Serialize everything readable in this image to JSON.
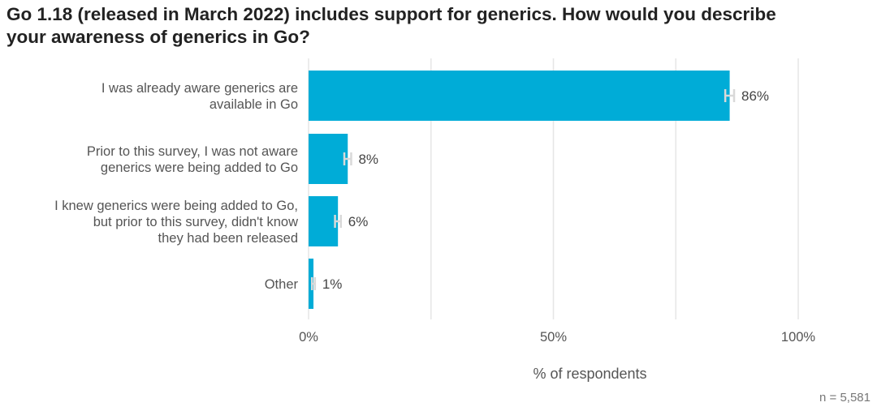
{
  "title_line1": "Go 1.18 (released in March 2022) includes support for generics. How would you describe",
  "title_line2": "your awareness of generics in Go?",
  "sample_size": "n =  5,581",
  "chart_data": {
    "type": "bar",
    "orientation": "horizontal",
    "title": "Go 1.18 (released in March 2022) includes support for generics. How would you describe your awareness of generics in Go?",
    "categories": [
      [
        "I was already aware generics are",
        "available in Go"
      ],
      [
        "Prior to this survey, I was not aware",
        "generics were being added to Go"
      ],
      [
        "I knew generics were being added to Go,",
        "but prior to this survey, didn't know",
        "they had been released"
      ],
      [
        "Other"
      ]
    ],
    "values": [
      86,
      8,
      6,
      1
    ],
    "value_labels": [
      "86%",
      "8%",
      "6%",
      "1%"
    ],
    "error_margin": [
      0.9,
      0.7,
      0.6,
      0.3
    ],
    "xlabel": "% of respondents",
    "ylabel": "",
    "xlim": [
      0,
      100
    ],
    "ticks": [
      0,
      50,
      100
    ],
    "tick_labels": [
      "0%",
      "50%",
      "100%"
    ],
    "grid": true,
    "bar_color": "#00acd7",
    "grid_color": "#e6e6e6",
    "error_color": "#d9d9d9"
  }
}
